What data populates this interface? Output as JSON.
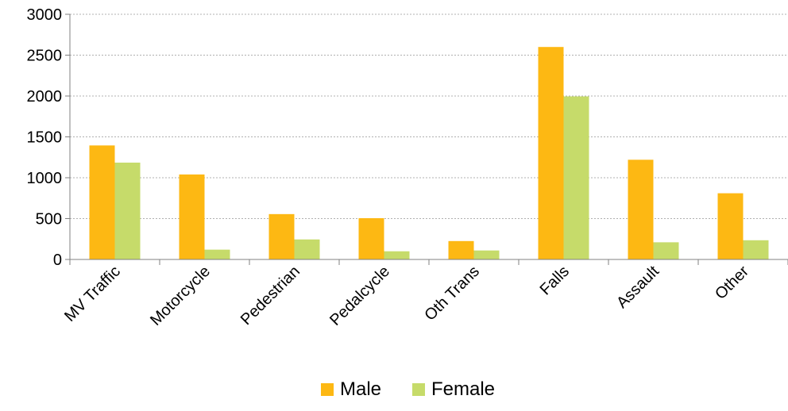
{
  "chart_data": {
    "type": "bar",
    "title": "",
    "xlabel": "",
    "ylabel": "",
    "categories": [
      "MV Traffic",
      "Motorcycle",
      "Pedestrian",
      "Pedalcycle",
      "Oth Trans",
      "Falls",
      "Assault",
      "Other"
    ],
    "series": [
      {
        "name": "Male",
        "color": "#FDB813",
        "values": [
          1395,
          1040,
          555,
          505,
          225,
          2600,
          1220,
          810
        ]
      },
      {
        "name": "Female",
        "color": "#C6DB6A",
        "values": [
          1185,
          120,
          245,
          100,
          110,
          1995,
          210,
          235
        ]
      }
    ],
    "ylim": [
      0,
      3000
    ],
    "yticks": [
      0,
      500,
      1000,
      1500,
      2000,
      2500,
      3000
    ],
    "grid": true,
    "legend_position": "bottom"
  }
}
